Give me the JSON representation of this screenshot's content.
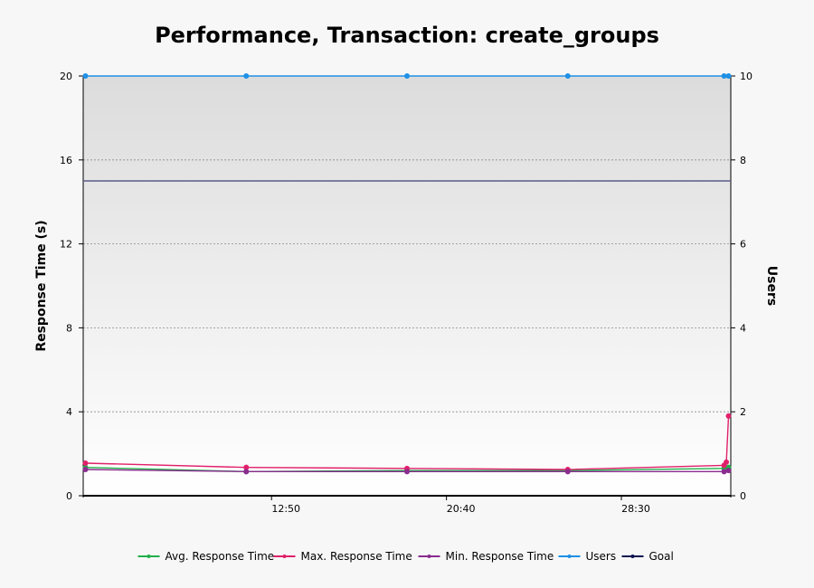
{
  "chart_data": {
    "type": "line",
    "title": "Performance, Transaction: create_groups",
    "ylabel": "Response Time (s)",
    "y2label": "Users",
    "ylim": [
      0,
      20
    ],
    "y2lim": [
      0,
      10
    ],
    "yticks": [
      "0",
      "4",
      "8",
      "12",
      "16",
      "20"
    ],
    "y2ticks": [
      "0",
      "2",
      "4",
      "6",
      "8",
      "10"
    ],
    "xlim": [
      4.4,
      33.4
    ],
    "xticks": [
      {
        "label": "12:50",
        "value": 12.833
      },
      {
        "label": "20:40",
        "value": 20.667
      },
      {
        "label": "28:30",
        "value": 28.5
      }
    ],
    "grid": true,
    "legend_position": "bottom",
    "series": [
      {
        "name": "Avg. Response Time",
        "color": "#22b04a",
        "axis": "left",
        "points": [
          [
            4.5,
            1.35
          ],
          [
            11.7,
            1.15
          ],
          [
            18.9,
            1.2
          ],
          [
            26.1,
            1.2
          ],
          [
            33.1,
            1.3
          ],
          [
            33.3,
            1.35
          ]
        ]
      },
      {
        "name": "Max. Response Time",
        "color": "#e0206a",
        "axis": "left",
        "points": [
          [
            4.5,
            1.55
          ],
          [
            11.7,
            1.35
          ],
          [
            18.9,
            1.3
          ],
          [
            26.1,
            1.25
          ],
          [
            33.1,
            1.45
          ],
          [
            33.2,
            1.6
          ],
          [
            33.3,
            3.8
          ]
        ]
      },
      {
        "name": "Min. Response Time",
        "color": "#8b2c8f",
        "axis": "left",
        "points": [
          [
            4.5,
            1.25
          ],
          [
            11.7,
            1.15
          ],
          [
            18.9,
            1.15
          ],
          [
            26.1,
            1.15
          ],
          [
            33.1,
            1.15
          ],
          [
            33.3,
            1.2
          ]
        ]
      },
      {
        "name": "Users",
        "color": "#1e90e6",
        "axis": "right",
        "points": [
          [
            4.5,
            10
          ],
          [
            11.7,
            10
          ],
          [
            18.9,
            10
          ],
          [
            26.1,
            10
          ],
          [
            33.1,
            10
          ],
          [
            33.3,
            10
          ]
        ]
      },
      {
        "name": "Goal",
        "color": "#5a5a8a",
        "axis": "left",
        "points": [
          [
            4.4,
            15
          ],
          [
            33.4,
            15
          ]
        ]
      }
    ],
    "legend": [
      {
        "name": "Avg. Response Time",
        "color": "#22b04a"
      },
      {
        "name": "Max. Response Time",
        "color": "#e0206a"
      },
      {
        "name": "Min. Response Time",
        "color": "#8b2c8f"
      },
      {
        "name": "Users",
        "color": "#1e90e6"
      },
      {
        "name": "Goal",
        "color": "#0a1450"
      }
    ]
  }
}
